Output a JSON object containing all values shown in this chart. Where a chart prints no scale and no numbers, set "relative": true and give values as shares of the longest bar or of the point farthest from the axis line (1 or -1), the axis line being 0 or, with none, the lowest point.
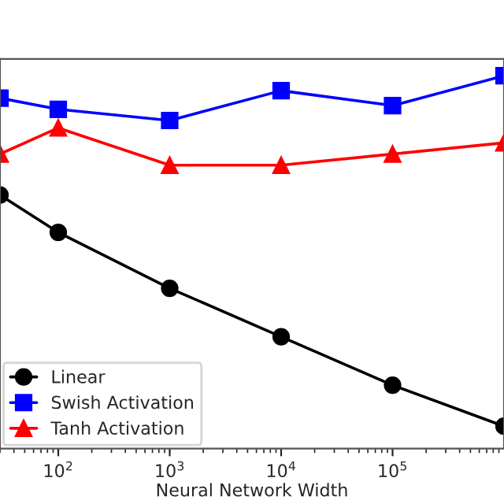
{
  "chart_data": {
    "type": "line",
    "xlabel": "Neural Network Width",
    "relative": true,
    "log": "x",
    "x": [
      30,
      100,
      1000,
      10000,
      100000,
      1000000
    ],
    "xlim": [
      30,
      1000000
    ],
    "xticks": [
      {
        "value": 100,
        "label": "10$^{2}$"
      },
      {
        "value": 1000,
        "label": "10$^{3}$"
      },
      {
        "value": 10000,
        "label": "10$^{4}$"
      },
      {
        "value": 100000,
        "label": "10$^{5}$"
      }
    ],
    "tick_labels": "x",
    "grid": false,
    "legend": "bottom left",
    "line_style": "solid",
    "series": [
      {
        "name": "Linear",
        "color": "#000000",
        "marker": "circle",
        "values": [
          0.68,
          0.58,
          0.43,
          0.3,
          0.17,
          0.06
        ]
      },
      {
        "name": "Swish Activation",
        "color": "#0000ff",
        "marker": "square",
        "values": [
          0.94,
          0.91,
          0.88,
          0.96,
          0.92,
          1.0
        ]
      },
      {
        "name": "Tanh Activation",
        "color": "#ff0000",
        "marker": "triangle",
        "values": [
          0.79,
          0.86,
          0.76,
          0.76,
          0.79,
          0.82
        ]
      }
    ]
  }
}
